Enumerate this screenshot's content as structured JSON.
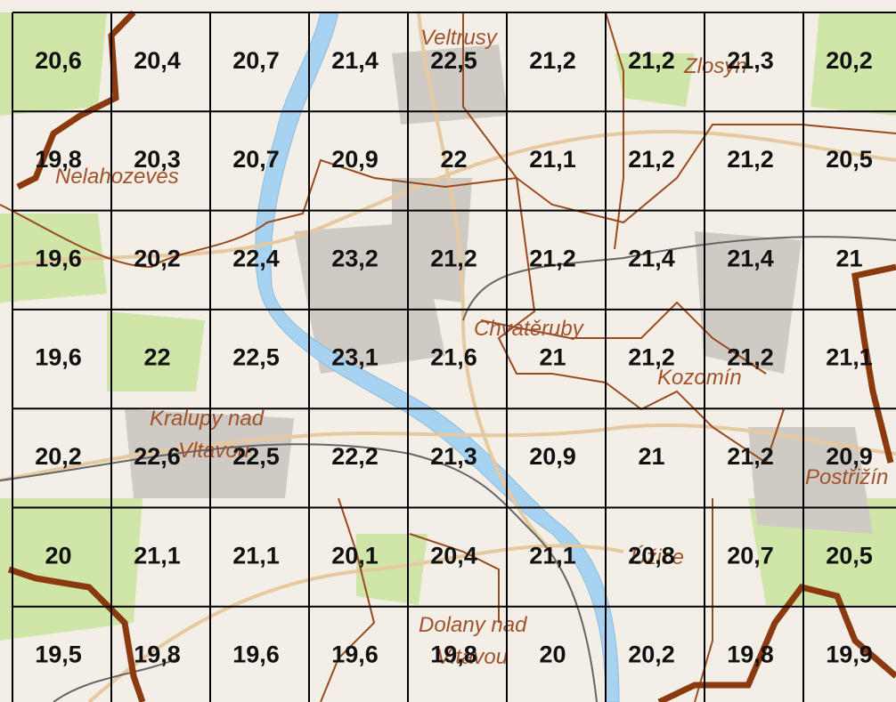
{
  "grid": {
    "rows": [
      [
        "20,6",
        "20,4",
        "20,7",
        "21,4",
        "22,5",
        "21,2",
        "21,2",
        "21,3",
        "20,2"
      ],
      [
        "19,8",
        "20,3",
        "20,7",
        "20,9",
        "22",
        "21,1",
        "21,2",
        "21,2",
        "20,5"
      ],
      [
        "19,6",
        "20,2",
        "22,4",
        "23,2",
        "21,2",
        "21,2",
        "21,4",
        "21,4",
        "21"
      ],
      [
        "19,6",
        "22",
        "22,5",
        "23,1",
        "21,6",
        "21",
        "21,2",
        "21,2",
        "21,1"
      ],
      [
        "20,2",
        "22,6",
        "22,5",
        "22,2",
        "21,3",
        "20,9",
        "21",
        "21,2",
        "20,9"
      ],
      [
        "20",
        "21,1",
        "21,1",
        "20,1",
        "20,4",
        "21,1",
        "20,8",
        "20,7",
        "20,5"
      ],
      [
        "19,5",
        "19,8",
        "19,6",
        "19,6",
        "19,8",
        "20",
        "20,2",
        "19,8",
        "19,9"
      ]
    ]
  },
  "places": [
    "Veltrusy",
    "Zlosyn",
    "Nelahozeves",
    "Chvatěruby",
    "Kozomín",
    "Kralupy nad",
    "Vltavou",
    "Postřižín",
    "Úžice",
    "Dolany nad",
    "Vltavou"
  ]
}
